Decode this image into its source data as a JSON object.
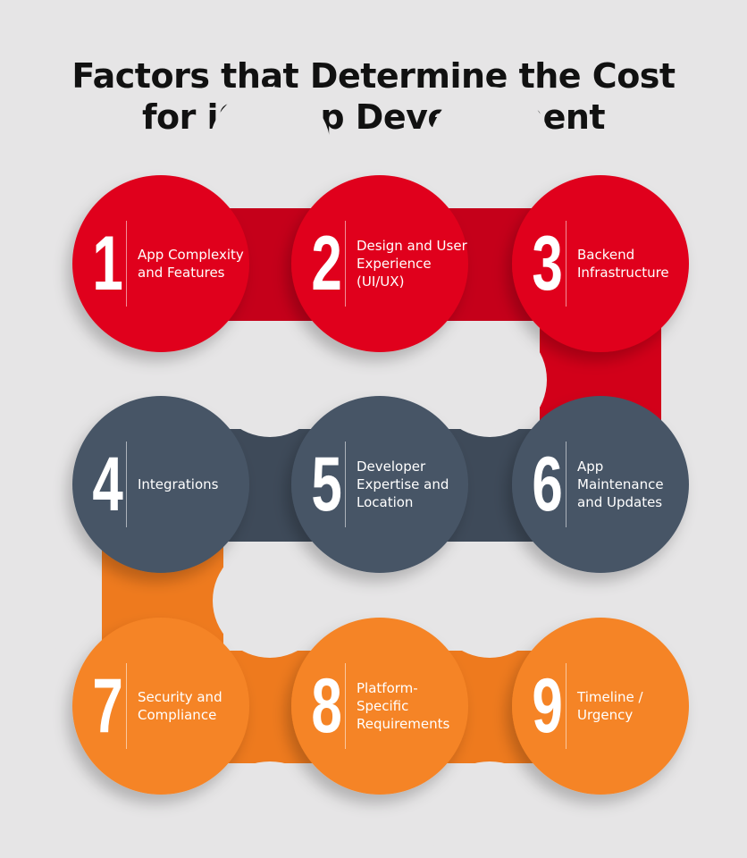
{
  "title_lines": [
    "Factors that Determine the Cost",
    "for iOSApp Development"
  ],
  "colors": {
    "background": "#e6e5e6",
    "red": "#e0001b",
    "slate": "#475566",
    "orange": "#f58426"
  },
  "factors": [
    {
      "number": "1",
      "label": "App Complexity and Features",
      "color": "red"
    },
    {
      "number": "2",
      "label": "Design and User Experience (UI/UX)",
      "color": "red"
    },
    {
      "number": "3",
      "label": "Backend Infrastructure",
      "color": "red"
    },
    {
      "number": "4",
      "label": "Integrations",
      "color": "slate"
    },
    {
      "number": "5",
      "label": "Developer Expertise and Location",
      "color": "slate"
    },
    {
      "number": "6",
      "label": "App Maintenance and Updates",
      "color": "slate"
    },
    {
      "number": "7",
      "label": "Security and Compliance",
      "color": "orange"
    },
    {
      "number": "8",
      "label": "Platform-Specific Requirements",
      "color": "orange"
    },
    {
      "number": "9",
      "label": "Timeline / Urgency",
      "color": "orange"
    }
  ]
}
